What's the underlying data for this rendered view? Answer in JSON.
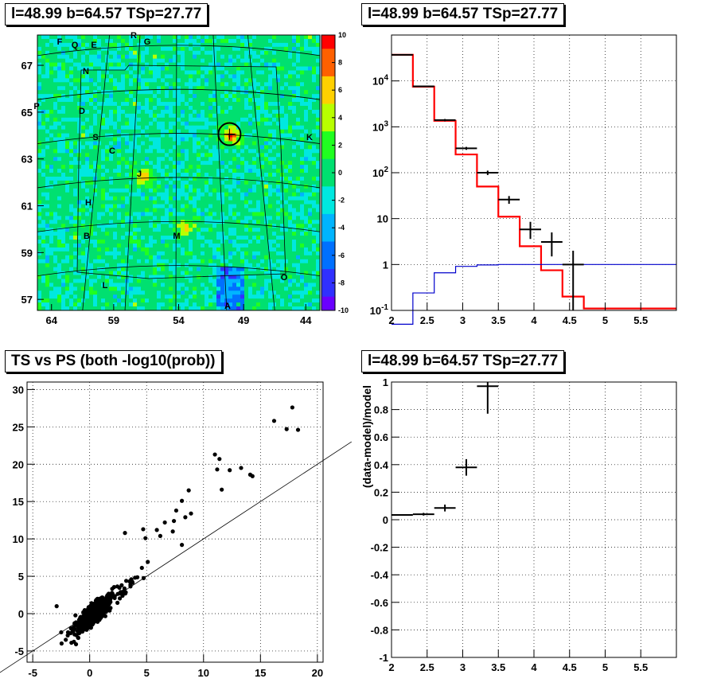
{
  "panels": {
    "skymap": {
      "title": "l=48.99 b=64.57 TSp=27.77"
    },
    "spectrum": {
      "title": "l=48.99 b=64.57 TSp=27.77"
    },
    "scatter": {
      "title": "TS vs PS (both -log10(prob))"
    },
    "residual": {
      "title": "l=48.99 b=64.57 TSp=27.77"
    }
  },
  "colors": {
    "data": "#000000",
    "model": "#ff0000",
    "background": "#0000cc"
  },
  "chart_data": [
    {
      "type": "heatmap",
      "title": "l=48.99 b=64.57 TSp=27.77",
      "x_ticks": [
        "64",
        "59",
        "54",
        "49",
        "44"
      ],
      "y_ticks": [
        "57",
        "59",
        "61",
        "63",
        "65",
        "67"
      ],
      "colorbar": {
        "min": -10,
        "max": 10,
        "ticks": [
          "10",
          "8",
          "6",
          "4",
          "2",
          "0",
          "-2",
          "-4",
          "-6",
          "-8",
          "-10"
        ]
      },
      "source_labels": [
        "F",
        "Q",
        "E",
        "R",
        "G",
        "N",
        "P",
        "D",
        "S",
        "C",
        "J",
        "K",
        "H",
        "B",
        "M",
        "L",
        "O",
        "A"
      ],
      "hotspots": [
        {
          "label": "source",
          "value": 9
        },
        {
          "label": "J",
          "value": 6
        },
        {
          "label": "M",
          "value": 6
        }
      ]
    },
    {
      "type": "line",
      "title": "l=48.99 b=64.57 TSp=27.77",
      "xlim": [
        2,
        6
      ],
      "ylim": [
        0.1,
        100000
      ],
      "yscale": "log",
      "x_ticks": [
        "2",
        "2.5",
        "3",
        "3.5",
        "4",
        "4.5",
        "5",
        "5.5"
      ],
      "y_ticks": [
        "10^-1",
        "1",
        "10",
        "10^2",
        "10^3",
        "10^4"
      ],
      "grid": true,
      "series": [
        {
          "kind": "step",
          "color": "red",
          "edges": [
            2.0,
            2.3,
            2.6,
            2.9,
            3.2,
            3.5,
            3.8,
            4.1,
            4.4,
            4.7,
            6.0
          ],
          "values": [
            37000,
            7500,
            1350,
            250,
            50,
            11,
            2.5,
            0.75,
            0.2,
            0.11
          ]
        },
        {
          "kind": "step",
          "color": "blue",
          "edges": [
            2.0,
            2.3,
            2.6,
            2.9,
            3.2,
            3.5,
            6.0
          ],
          "values": [
            0.05,
            0.24,
            0.66,
            0.91,
            0.98,
            1.0
          ]
        },
        {
          "kind": "errorbars",
          "color": "black",
          "points": [
            {
              "x": 2.15,
              "y": 37000,
              "xerr": 0.15,
              "ylo": 36500,
              "yhi": 37500
            },
            {
              "x": 2.45,
              "y": 7600,
              "xerr": 0.15,
              "ylo": 7400,
              "yhi": 7800
            },
            {
              "x": 2.75,
              "y": 1400,
              "xerr": 0.15,
              "ylo": 1320,
              "yhi": 1480
            },
            {
              "x": 3.05,
              "y": 340,
              "xerr": 0.15,
              "ylo": 315,
              "yhi": 365
            },
            {
              "x": 3.35,
              "y": 100,
              "xerr": 0.15,
              "ylo": 89,
              "yhi": 111
            },
            {
              "x": 3.65,
              "y": 26,
              "xerr": 0.15,
              "ylo": 21,
              "yhi": 31
            },
            {
              "x": 3.95,
              "y": 5.8,
              "xerr": 0.15,
              "ylo": 3.6,
              "yhi": 8.5
            },
            {
              "x": 4.25,
              "y": 3.1,
              "xerr": 0.15,
              "ylo": 1.5,
              "yhi": 5.0
            },
            {
              "x": 4.55,
              "y": 1.0,
              "xerr": 0.15,
              "ylo": 0.1,
              "yhi": 2.0
            }
          ]
        }
      ]
    },
    {
      "type": "scatter",
      "title": "TS vs PS (both -log10(prob))",
      "xlim": [
        -5.5,
        20.5
      ],
      "ylim": [
        -6.5,
        31
      ],
      "x_ticks": [
        "-5",
        "0",
        "5",
        "10",
        "15",
        "20"
      ],
      "y_ticks": [
        "-5",
        "0",
        "5",
        "10",
        "15",
        "20",
        "25",
        "30"
      ],
      "grid": true,
      "reference_line": {
        "slope": 1,
        "intercept": 0
      },
      "outliers": [
        [
          16.2,
          25.8
        ],
        [
          17.3,
          24.7
        ],
        [
          17.8,
          27.6
        ],
        [
          18.3,
          24.6
        ],
        [
          11,
          21.3
        ],
        [
          11.4,
          20.7
        ],
        [
          11.2,
          19.3
        ],
        [
          12.3,
          19.2
        ],
        [
          13.3,
          19.5
        ],
        [
          14.1,
          18.6
        ],
        [
          14.3,
          18.4
        ],
        [
          11.6,
          16.6
        ],
        [
          8.7,
          16.5
        ],
        [
          8.1,
          15.1
        ],
        [
          8.9,
          13.4
        ],
        [
          7.6,
          13.8
        ],
        [
          8.4,
          12.9
        ],
        [
          7.4,
          12.4
        ],
        [
          6.6,
          12.2
        ],
        [
          4.7,
          11.3
        ],
        [
          5.9,
          11.2
        ],
        [
          7.3,
          11
        ],
        [
          6.2,
          10.4
        ],
        [
          4.9,
          10.1
        ],
        [
          3.1,
          10.8
        ],
        [
          8.1,
          9.2
        ],
        [
          -2.9,
          1.0
        ],
        [
          -2.5,
          -2.5
        ],
        [
          -2.1,
          -3.5
        ],
        [
          -1.6,
          -3.9
        ],
        [
          -1.2,
          -4.1
        ]
      ],
      "cluster": {
        "x_range": [
          -2.5,
          8
        ],
        "y_range": [
          -4,
          9
        ],
        "points": 900
      }
    },
    {
      "type": "line",
      "title": "l=48.99 b=64.57 TSp=27.77",
      "xlim": [
        2,
        6
      ],
      "ylim": [
        -1,
        1
      ],
      "ylabel": "(data-model)/model",
      "x_ticks": [
        "2",
        "2.5",
        "3",
        "3.5",
        "4",
        "4.5",
        "5",
        "5.5"
      ],
      "y_ticks": [
        "1",
        "0.8",
        "0.6",
        "0.4",
        "0.2",
        "0",
        "-0.2",
        "-0.4",
        "-0.6",
        "-0.8",
        "-1"
      ],
      "grid": true,
      "points": [
        {
          "x": 2.15,
          "y": 0.035,
          "xerr": 0.15,
          "ylo": 0.03,
          "yhi": 0.04
        },
        {
          "x": 2.45,
          "y": 0.04,
          "xerr": 0.15,
          "ylo": 0.03,
          "yhi": 0.05
        },
        {
          "x": 2.75,
          "y": 0.085,
          "xerr": 0.15,
          "ylo": 0.06,
          "yhi": 0.11
        },
        {
          "x": 3.05,
          "y": 0.38,
          "xerr": 0.15,
          "ylo": 0.32,
          "yhi": 0.44
        },
        {
          "x": 3.35,
          "y": 0.97,
          "xerr": 0.15,
          "ylo": 0.77,
          "yhi": 1.0
        }
      ]
    }
  ]
}
